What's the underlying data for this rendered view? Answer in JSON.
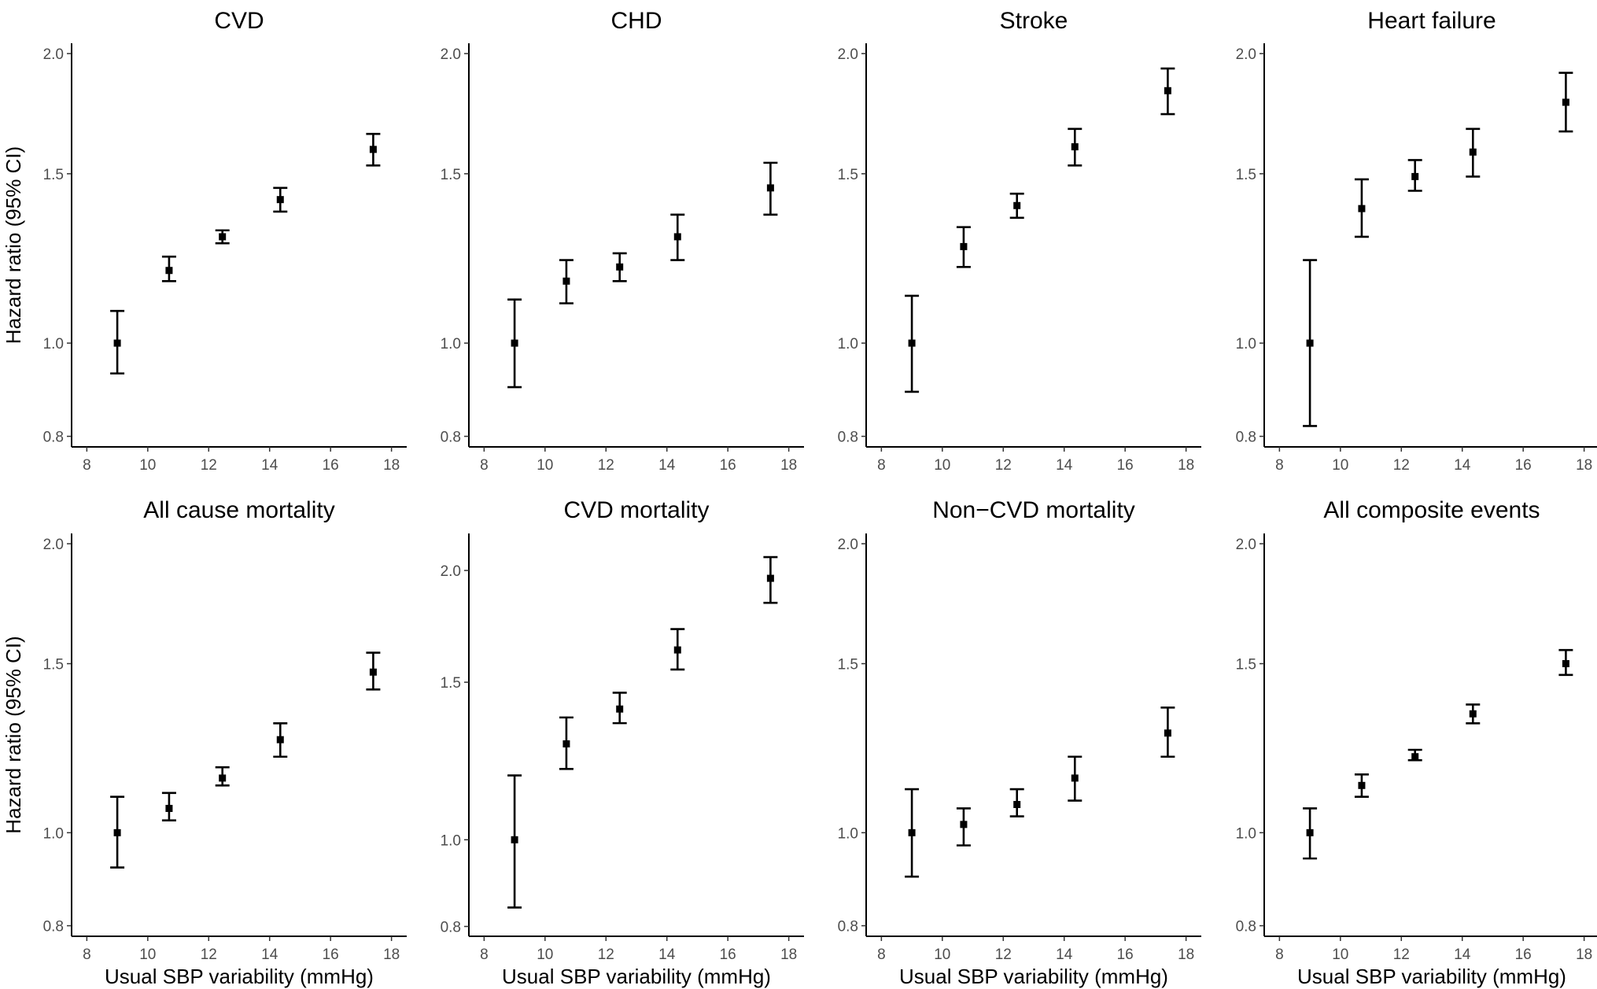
{
  "chart_data": [
    {
      "type": "scatter",
      "title": "CVD",
      "xlabel": "",
      "ylabel": "Hazard ratio (95% CI)",
      "y_scale": "log",
      "xlim": [
        7.5,
        18.5
      ],
      "ylim": [
        0.78,
        2.05
      ],
      "xticks": [
        8,
        10,
        12,
        14,
        16,
        18
      ],
      "yticks": [
        0.8,
        1.0,
        1.5,
        2.0
      ],
      "points": [
        {
          "x": 9.0,
          "y": 1.0,
          "lo": 0.93,
          "hi": 1.08
        },
        {
          "x": 10.7,
          "y": 1.19,
          "lo": 1.16,
          "hi": 1.23
        },
        {
          "x": 12.45,
          "y": 1.29,
          "lo": 1.27,
          "hi": 1.31
        },
        {
          "x": 14.35,
          "y": 1.41,
          "lo": 1.37,
          "hi": 1.45
        },
        {
          "x": 17.4,
          "y": 1.59,
          "lo": 1.53,
          "hi": 1.65
        }
      ]
    },
    {
      "type": "scatter",
      "title": "CHD",
      "xlabel": "",
      "ylabel": "",
      "y_scale": "log",
      "xlim": [
        7.5,
        18.5
      ],
      "ylim": [
        0.78,
        2.05
      ],
      "xticks": [
        8,
        10,
        12,
        14,
        16,
        18
      ],
      "yticks": [
        0.8,
        1.0,
        1.5,
        2.0
      ],
      "points": [
        {
          "x": 9.0,
          "y": 1.0,
          "lo": 0.9,
          "hi": 1.11
        },
        {
          "x": 10.7,
          "y": 1.16,
          "lo": 1.1,
          "hi": 1.22
        },
        {
          "x": 12.45,
          "y": 1.2,
          "lo": 1.16,
          "hi": 1.24
        },
        {
          "x": 14.35,
          "y": 1.29,
          "lo": 1.22,
          "hi": 1.36
        },
        {
          "x": 17.4,
          "y": 1.45,
          "lo": 1.36,
          "hi": 1.54
        }
      ]
    },
    {
      "type": "scatter",
      "title": "Stroke",
      "xlabel": "",
      "ylabel": "",
      "y_scale": "log",
      "xlim": [
        7.5,
        18.5
      ],
      "ylim": [
        0.78,
        2.05
      ],
      "xticks": [
        8,
        10,
        12,
        14,
        16,
        18
      ],
      "yticks": [
        0.8,
        1.0,
        1.5,
        2.0
      ],
      "points": [
        {
          "x": 9.0,
          "y": 1.0,
          "lo": 0.89,
          "hi": 1.12
        },
        {
          "x": 10.7,
          "y": 1.26,
          "lo": 1.2,
          "hi": 1.32
        },
        {
          "x": 12.45,
          "y": 1.39,
          "lo": 1.35,
          "hi": 1.43
        },
        {
          "x": 14.35,
          "y": 1.6,
          "lo": 1.53,
          "hi": 1.67
        },
        {
          "x": 17.4,
          "y": 1.83,
          "lo": 1.73,
          "hi": 1.93
        }
      ]
    },
    {
      "type": "scatter",
      "title": "Heart failure",
      "xlabel": "",
      "ylabel": "",
      "y_scale": "log",
      "xlim": [
        7.5,
        18.5
      ],
      "ylim": [
        0.78,
        2.05
      ],
      "xticks": [
        8,
        10,
        12,
        14,
        16,
        18
      ],
      "yticks": [
        0.8,
        1.0,
        1.5,
        2.0
      ],
      "points": [
        {
          "x": 9.0,
          "y": 1.0,
          "lo": 0.82,
          "hi": 1.22
        },
        {
          "x": 10.7,
          "y": 1.38,
          "lo": 1.29,
          "hi": 1.48
        },
        {
          "x": 12.45,
          "y": 1.49,
          "lo": 1.44,
          "hi": 1.55
        },
        {
          "x": 14.35,
          "y": 1.58,
          "lo": 1.49,
          "hi": 1.67
        },
        {
          "x": 17.4,
          "y": 1.78,
          "lo": 1.66,
          "hi": 1.91
        }
      ]
    },
    {
      "type": "scatter",
      "title": "All cause mortality",
      "xlabel": "Usual SBP variability (mmHg)",
      "ylabel": "Hazard ratio (95% CI)",
      "y_scale": "log",
      "xlim": [
        7.5,
        18.5
      ],
      "ylim": [
        0.78,
        2.05
      ],
      "xticks": [
        8,
        10,
        12,
        14,
        16,
        18
      ],
      "yticks": [
        0.8,
        1.0,
        1.5,
        2.0
      ],
      "points": [
        {
          "x": 9.0,
          "y": 1.0,
          "lo": 0.92,
          "hi": 1.09
        },
        {
          "x": 10.7,
          "y": 1.06,
          "lo": 1.03,
          "hi": 1.1
        },
        {
          "x": 12.45,
          "y": 1.14,
          "lo": 1.12,
          "hi": 1.17
        },
        {
          "x": 14.35,
          "y": 1.25,
          "lo": 1.2,
          "hi": 1.3
        },
        {
          "x": 17.4,
          "y": 1.47,
          "lo": 1.41,
          "hi": 1.54
        }
      ]
    },
    {
      "type": "scatter",
      "title": "CVD mortality",
      "xlabel": "Usual SBP variability (mmHg)",
      "ylabel": "",
      "y_scale": "log",
      "xlim": [
        7.5,
        18.5
      ],
      "ylim": [
        0.78,
        2.2
      ],
      "xticks": [
        8,
        10,
        12,
        14,
        16,
        18
      ],
      "yticks": [
        0.8,
        1.0,
        1.5,
        2.0
      ],
      "points": [
        {
          "x": 9.0,
          "y": 1.0,
          "lo": 0.84,
          "hi": 1.18
        },
        {
          "x": 10.7,
          "y": 1.28,
          "lo": 1.2,
          "hi": 1.37
        },
        {
          "x": 12.45,
          "y": 1.4,
          "lo": 1.35,
          "hi": 1.46
        },
        {
          "x": 14.35,
          "y": 1.63,
          "lo": 1.55,
          "hi": 1.72
        },
        {
          "x": 17.4,
          "y": 1.96,
          "lo": 1.84,
          "hi": 2.07
        }
      ]
    },
    {
      "type": "scatter",
      "title": "Non−CVD mortality",
      "xlabel": "Usual SBP variability (mmHg)",
      "ylabel": "",
      "y_scale": "log",
      "xlim": [
        7.5,
        18.5
      ],
      "ylim": [
        0.78,
        2.05
      ],
      "xticks": [
        8,
        10,
        12,
        14,
        16,
        18
      ],
      "yticks": [
        0.8,
        1.0,
        1.5,
        2.0
      ],
      "points": [
        {
          "x": 9.0,
          "y": 1.0,
          "lo": 0.9,
          "hi": 1.11
        },
        {
          "x": 10.7,
          "y": 1.02,
          "lo": 0.97,
          "hi": 1.06
        },
        {
          "x": 12.45,
          "y": 1.07,
          "lo": 1.04,
          "hi": 1.11
        },
        {
          "x": 14.35,
          "y": 1.14,
          "lo": 1.08,
          "hi": 1.2
        },
        {
          "x": 17.4,
          "y": 1.27,
          "lo": 1.2,
          "hi": 1.35
        }
      ]
    },
    {
      "type": "scatter",
      "title": "All composite events",
      "xlabel": "Usual SBP variability (mmHg)",
      "ylabel": "",
      "y_scale": "log",
      "xlim": [
        7.5,
        18.5
      ],
      "ylim": [
        0.78,
        2.05
      ],
      "xticks": [
        8,
        10,
        12,
        14,
        16,
        18
      ],
      "yticks": [
        0.8,
        1.0,
        1.5,
        2.0
      ],
      "points": [
        {
          "x": 9.0,
          "y": 1.0,
          "lo": 0.94,
          "hi": 1.06
        },
        {
          "x": 10.7,
          "y": 1.12,
          "lo": 1.09,
          "hi": 1.15
        },
        {
          "x": 12.45,
          "y": 1.2,
          "lo": 1.19,
          "hi": 1.22
        },
        {
          "x": 14.35,
          "y": 1.33,
          "lo": 1.3,
          "hi": 1.36
        },
        {
          "x": 17.4,
          "y": 1.5,
          "lo": 1.46,
          "hi": 1.55
        }
      ]
    }
  ]
}
